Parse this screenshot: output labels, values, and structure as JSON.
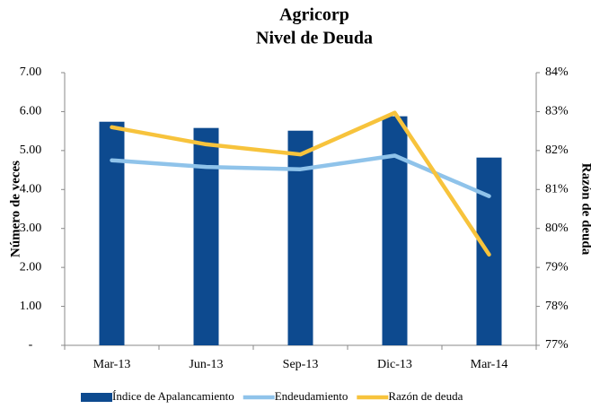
{
  "chart_data": {
    "type": "bar",
    "title": "Agricorp",
    "subtitle": "Nivel de Deuda",
    "ylabel": "Número de veces",
    "y2label": "Razón de deuda",
    "categories": [
      "Mar-13",
      "Jun-13",
      "Sep-13",
      "Dic-13",
      "Mar-14"
    ],
    "series": [
      {
        "name": "Índice de Apalancamiento",
        "type": "bar",
        "color": "#0d4a8f",
        "axis": "y",
        "values": [
          5.74,
          5.58,
          5.51,
          5.88,
          4.82
        ]
      },
      {
        "name": "Endeudamiento",
        "type": "line",
        "color": "#8fc3ea",
        "axis": "y",
        "values": [
          4.75,
          4.58,
          4.52,
          4.87,
          3.83
        ]
      },
      {
        "name": "Razón de deuda",
        "type": "line",
        "color": "#f7c33c",
        "axis": "y2",
        "values": [
          82.6,
          82.16,
          81.9,
          82.97,
          79.33
        ]
      }
    ],
    "ylim": [
      0,
      7
    ],
    "yticks": [
      {
        "value": 0,
        "label": "-"
      },
      {
        "value": 1,
        "label": "1.00"
      },
      {
        "value": 2,
        "label": "2.00"
      },
      {
        "value": 3,
        "label": "3.00"
      },
      {
        "value": 4,
        "label": "4.00"
      },
      {
        "value": 5,
        "label": "5.00"
      },
      {
        "value": 6,
        "label": "6.00"
      },
      {
        "value": 7,
        "label": "7.00"
      }
    ],
    "y2lim": [
      77,
      84
    ],
    "y2ticks": [
      {
        "value": 77,
        "label": "77%"
      },
      {
        "value": 78,
        "label": "78%"
      },
      {
        "value": 79,
        "label": "79%"
      },
      {
        "value": 80,
        "label": "80%"
      },
      {
        "value": 81,
        "label": "81%"
      },
      {
        "value": 82,
        "label": "82%"
      },
      {
        "value": 83,
        "label": "83%"
      },
      {
        "value": 84,
        "label": "84%"
      }
    ],
    "grid": false,
    "legend": "bottom"
  }
}
